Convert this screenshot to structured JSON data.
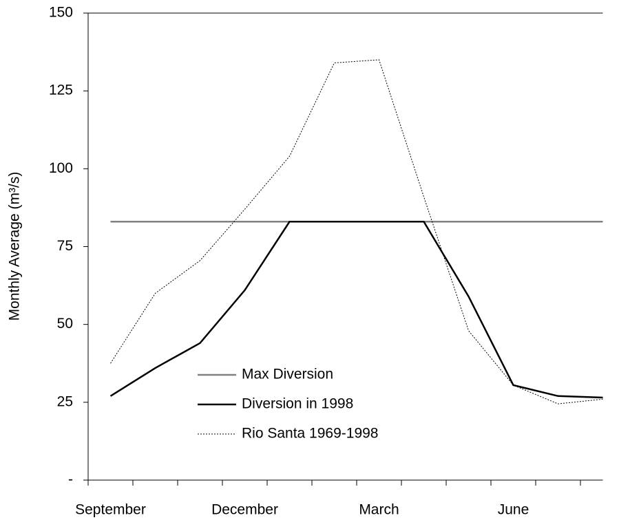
{
  "chart_data": {
    "type": "line",
    "y_label": "Monthly Average (m³/s)",
    "categories": [
      "September",
      null,
      null,
      "December",
      null,
      null,
      "March",
      null,
      null,
      "June",
      null,
      null
    ],
    "series": [
      {
        "name": "Max Diversion",
        "color": "#808080",
        "style": "solid",
        "values": [
          83,
          83,
          83,
          83,
          83,
          83,
          83,
          83,
          83,
          83,
          83,
          83
        ]
      },
      {
        "name": "Diversion in 1998",
        "color": "#000000",
        "style": "solid",
        "values": [
          27,
          36,
          44,
          61,
          83,
          83,
          83,
          83,
          59,
          30.5,
          27,
          26.5
        ]
      },
      {
        "name": "Rio Santa 1969-1998",
        "color": "#000000",
        "style": "dotted",
        "values": [
          37.5,
          60,
          70.5,
          87,
          104,
          134,
          135,
          91,
          48,
          30.5,
          24.5,
          26
        ]
      }
    ],
    "ylim": [
      0,
      150
    ],
    "yticks": [
      {
        "value": 0,
        "label": "-"
      },
      25,
      50,
      75,
      100,
      125,
      150
    ],
    "grid": false
  }
}
